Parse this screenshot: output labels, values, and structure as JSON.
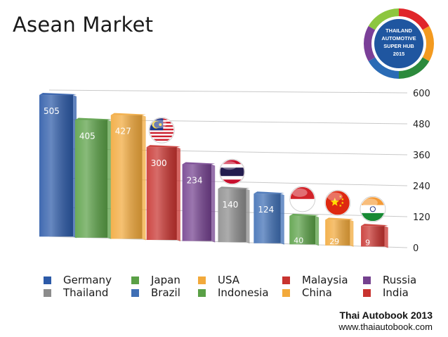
{
  "title": "Asean Market",
  "logo": {
    "line1": "THAILAND",
    "line2": "AUTOMOTIVE",
    "line3": "SUPER HUB",
    "line4": "2015",
    "ring_colors": [
      "#e0262a",
      "#f39a1f",
      "#2c8a3c",
      "#2a6bb5",
      "#7a3f98",
      "#8dc63f"
    ]
  },
  "credit": {
    "line1": "Thai Autobook 2013",
    "line2": "www.thaiautobook.com"
  },
  "chart_data": {
    "type": "bar",
    "title": "",
    "xlabel": "",
    "ylabel": "",
    "ylim": [
      0,
      600
    ],
    "yticks": [
      "0",
      "120",
      "240",
      "360",
      "480",
      "600"
    ],
    "categories": [
      "Germany",
      "Japan",
      "USA",
      "Malaysia",
      "Russia",
      "Thailand",
      "Brazil",
      "Indonesia",
      "China",
      "India"
    ],
    "values": [
      505,
      405,
      427,
      300,
      234,
      140,
      124,
      40,
      29,
      9
    ],
    "value_labels": [
      "505",
      "405",
      "427",
      "300",
      "234",
      "140",
      "124",
      "40",
      "29",
      "9"
    ],
    "colors": [
      "#2c5aa8",
      "#5aa046",
      "#f2a93b",
      "#c8332f",
      "#74418f",
      "#8c8c8c",
      "#3f6fb5",
      "#5aa046",
      "#f2a93b",
      "#c8332f"
    ],
    "flags_on_bars": [
      "Malaysia",
      "Thailand",
      "Indonesia",
      "China",
      "India"
    ],
    "legend_position": "bottom",
    "grid": true
  },
  "legend": [
    {
      "label": "Germany",
      "color": "#2c5aa8"
    },
    {
      "label": "Japan",
      "color": "#5aa046"
    },
    {
      "label": "USA",
      "color": "#f2a93b"
    },
    {
      "label": "Malaysia",
      "color": "#c8332f"
    },
    {
      "label": "Russia",
      "color": "#74418f"
    },
    {
      "label": "Thailand",
      "color": "#8c8c8c"
    },
    {
      "label": "Brazil",
      "color": "#3f6fb5"
    },
    {
      "label": "Indonesia",
      "color": "#5aa046"
    },
    {
      "label": "China",
      "color": "#f2a93b"
    },
    {
      "label": "India",
      "color": "#c8332f"
    }
  ]
}
